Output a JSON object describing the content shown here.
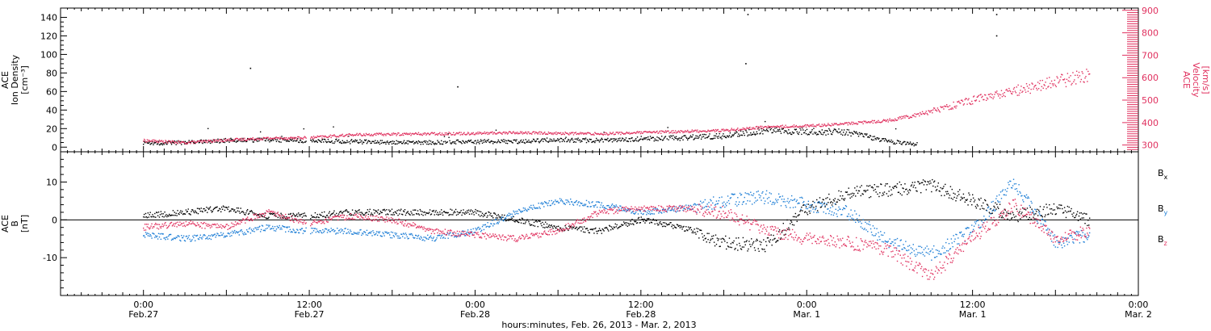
{
  "chart_data": [
    {
      "type": "scatter",
      "panel": "top",
      "ylabel_left": [
        "ACE",
        "Ion Density",
        "[cm⁻³]"
      ],
      "ylabel_right": [
        "ACE",
        "Velocity",
        "[km/s]"
      ],
      "ylim_left": [
        -5,
        150
      ],
      "yticks_left": [
        "0",
        "20",
        "40",
        "60",
        "80",
        "100",
        "120",
        "140"
      ],
      "ylim_right": [
        270,
        910
      ],
      "yticks_right": [
        "300",
        "400",
        "500",
        "600",
        "700",
        "800",
        "900"
      ],
      "series": [
        {
          "axis": "left",
          "color": "#000000",
          "x_hours": [
            0,
            6,
            12,
            18,
            24,
            30,
            36,
            42,
            48,
            54,
            60,
            66,
            72,
            78,
            84,
            90,
            96,
            102,
            108,
            112
          ],
          "values": [
            4,
            5,
            7,
            8,
            7,
            6,
            5,
            5,
            6,
            6,
            8,
            7,
            9,
            10,
            12,
            18,
            17,
            16,
            6,
            3
          ]
        },
        {
          "axis": "right",
          "color": "#e0315f",
          "x_hours": [
            0,
            6,
            12,
            18,
            24,
            30,
            36,
            42,
            48,
            54,
            60,
            66,
            72,
            78,
            84,
            90,
            96,
            102,
            108,
            114,
            120,
            126,
            132,
            137
          ],
          "values": [
            320,
            310,
            322,
            330,
            332,
            345,
            348,
            350,
            352,
            355,
            352,
            350,
            355,
            360,
            365,
            380,
            385,
            395,
            410,
            450,
            500,
            540,
            580,
            610
          ]
        }
      ],
      "outliers": [
        {
          "x_hours": 15.5,
          "y": 85
        },
        {
          "x_hours": 45.5,
          "y": 65
        },
        {
          "x_hours": 87.5,
          "y": 143
        },
        {
          "x_hours": 87.2,
          "y": 90
        },
        {
          "x_hours": 123.5,
          "y": 143
        },
        {
          "x_hours": 123.5,
          "y": 120
        }
      ]
    },
    {
      "type": "scatter",
      "panel": "bottom",
      "ylabel_left": [
        "ACE",
        "B",
        "[nT]"
      ],
      "ylim": [
        -20,
        18
      ],
      "yticks": [
        "10",
        "0",
        "-10"
      ],
      "legend": [
        {
          "label": "B",
          "sub": "x",
          "color": "#000000"
        },
        {
          "label": "B",
          "sub": "y",
          "color": "#1f7fd6"
        },
        {
          "label": "B",
          "sub": "z",
          "color": "#e0315f"
        }
      ],
      "series": [
        {
          "name": "Bx",
          "color": "#000000",
          "x_hours": [
            0,
            6,
            12,
            18,
            24,
            30,
            36,
            42,
            48,
            54,
            60,
            66,
            72,
            78,
            84,
            90,
            96,
            102,
            108,
            114,
            120,
            126,
            132,
            137
          ],
          "values": [
            1,
            2,
            3,
            1,
            1,
            2,
            2,
            2,
            2,
            0,
            -2,
            -3,
            0,
            -2,
            -6,
            -7,
            3,
            7,
            8,
            9,
            5,
            1,
            3,
            0
          ]
        },
        {
          "name": "By",
          "color": "#1f7fd6",
          "x_hours": [
            0,
            6,
            12,
            18,
            24,
            30,
            36,
            42,
            48,
            54,
            60,
            66,
            72,
            78,
            84,
            90,
            96,
            102,
            108,
            114,
            120,
            126,
            132,
            137
          ],
          "values": [
            -4,
            -5,
            -4,
            -2,
            -3,
            -3,
            -4,
            -5,
            -3,
            2,
            5,
            4,
            2,
            3,
            5,
            6,
            4,
            2,
            -6,
            -9,
            -3,
            10,
            -6,
            -4
          ]
        },
        {
          "name": "Bz",
          "color": "#e0315f",
          "x_hours": [
            0,
            6,
            12,
            18,
            24,
            30,
            36,
            42,
            48,
            54,
            60,
            66,
            72,
            78,
            84,
            90,
            96,
            102,
            108,
            114,
            120,
            126,
            132,
            137
          ],
          "values": [
            -2,
            -1,
            -2,
            2,
            -1,
            1,
            0,
            -3,
            -4,
            -5,
            -3,
            2,
            3,
            3,
            2,
            -3,
            -5,
            -6,
            -8,
            -15,
            -5,
            4,
            -5,
            -3
          ]
        }
      ]
    }
  ],
  "xaxis": {
    "xlim_hours": [
      -12,
      144
    ],
    "ticks": [
      {
        "h": 0,
        "time": "0:00",
        "date": "Feb.27"
      },
      {
        "h": 24,
        "time": "12:00",
        "date": "Feb.27"
      },
      {
        "h": 48,
        "time": "0:00",
        "date": "Feb.28"
      },
      {
        "h": 72,
        "time": "12:00",
        "date": "Feb.28"
      },
      {
        "h": 96,
        "time": "0:00",
        "date": "Mar. 1"
      },
      {
        "h": 120,
        "time": "12:00",
        "date": "Mar. 1"
      },
      {
        "h": 144,
        "time": "0:00",
        "date": "Mar. 2"
      }
    ],
    "xlabel": "hours:minutes, Feb. 26, 2013 - Mar.  2, 2013"
  }
}
